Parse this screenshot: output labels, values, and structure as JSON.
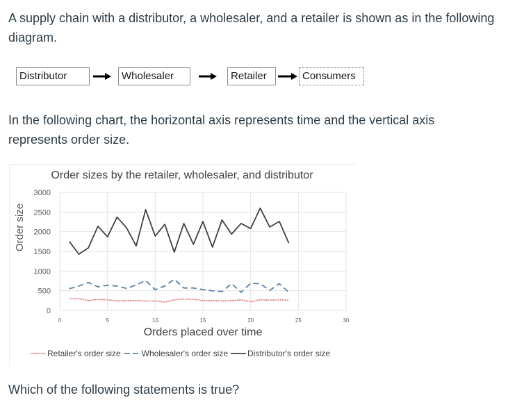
{
  "text": {
    "intro": "A supply chain with a distributor, a wholesaler, and a retailer is shown as in the following diagram.",
    "chart_intro": "In the following chart, the horizontal axis represents time and the vertical axis represents order size.",
    "question": "Which of the following statements is true?"
  },
  "diagram": {
    "nodes": [
      "Distributor",
      "Wholesaler",
      "Retailer",
      "Consumers"
    ]
  },
  "chart_data": {
    "type": "line",
    "title": "Order sizes by the retailer, wholesaler, and distributor",
    "xlabel": "Orders placed over time",
    "ylabel": "Order size",
    "xlim": [
      0,
      30
    ],
    "ylim": [
      0,
      3000
    ],
    "xticks": [
      0,
      5,
      10,
      15,
      20,
      25,
      30
    ],
    "yticks": [
      0,
      500,
      1000,
      1500,
      2000,
      2500,
      3000
    ],
    "grid": true,
    "legend_position": "bottom",
    "x": [
      1,
      2,
      3,
      4,
      5,
      6,
      7,
      8,
      9,
      10,
      11,
      12,
      13,
      14,
      15,
      16,
      17,
      18,
      19,
      20,
      21,
      22,
      23,
      24
    ],
    "series": [
      {
        "name": "Retailer's order size",
        "style": "dotted",
        "color": "#e06666",
        "values": [
          300,
          300,
          250,
          280,
          270,
          240,
          250,
          250,
          240,
          240,
          210,
          270,
          290,
          280,
          250,
          250,
          240,
          250,
          270,
          220,
          270,
          260,
          270,
          260
        ]
      },
      {
        "name": "Wholesaler's order size",
        "style": "dashed",
        "color": "#5b7fa6",
        "values": [
          550,
          620,
          710,
          600,
          640,
          620,
          560,
          650,
          760,
          530,
          620,
          790,
          570,
          570,
          530,
          500,
          480,
          680,
          460,
          690,
          680,
          510,
          680,
          460
        ]
      },
      {
        "name": "Distributor's order size",
        "style": "solid",
        "color": "#404040",
        "values": [
          1750,
          1430,
          1590,
          2140,
          1870,
          2370,
          2100,
          1640,
          2560,
          1890,
          2190,
          1480,
          2210,
          1680,
          2260,
          1610,
          2300,
          1940,
          2210,
          2080,
          2600,
          2120,
          2260,
          1710
        ]
      }
    ]
  }
}
